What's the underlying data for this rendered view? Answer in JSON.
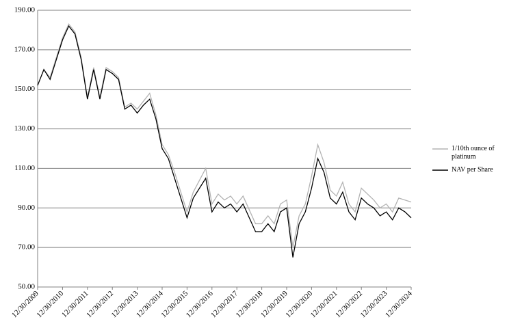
{
  "chart_data": {
    "type": "line",
    "categories": [
      "12/30/2009",
      null,
      null,
      null,
      "12/30/2010",
      null,
      null,
      null,
      "12/30/2011",
      null,
      null,
      null,
      "12/30/2012",
      null,
      null,
      null,
      "12/30/2013",
      null,
      null,
      null,
      "12/30/2014",
      null,
      null,
      null,
      "12/30/2015",
      null,
      null,
      null,
      "12/30/2016",
      null,
      null,
      null,
      "12/30/2017",
      null,
      null,
      null,
      "12/30/2018",
      null,
      null,
      null,
      "12/30/2019",
      null,
      null,
      null,
      "12/30/2020",
      null,
      null,
      null,
      "12/30/2021",
      null,
      null,
      null,
      "12/30/2022",
      null,
      null,
      null,
      "12/30/2023",
      null,
      null,
      null,
      "12/30/2024"
    ],
    "series": [
      {
        "name": "1/10th ounce of platinum",
        "color": "#b3b3b3",
        "values": [
          152,
          160,
          156,
          166,
          176,
          183,
          179,
          166,
          146,
          161,
          146,
          161,
          159,
          156,
          141,
          143,
          140,
          144,
          148,
          137,
          122,
          117,
          108,
          98,
          88,
          98,
          104,
          110,
          92,
          97,
          94,
          96,
          92,
          96,
          89,
          82,
          82,
          86,
          82,
          92,
          94,
          70,
          86,
          92,
          106,
          122,
          113,
          99,
          96,
          103,
          92,
          88,
          100,
          97,
          94,
          90,
          92,
          88,
          95,
          94,
          93
        ]
      },
      {
        "name": "NAV per Share",
        "color": "#000000",
        "values": [
          152,
          160,
          155,
          165,
          175,
          182,
          178,
          165,
          145,
          160,
          145,
          160,
          158,
          155,
          140,
          142,
          138,
          142,
          145,
          135,
          120,
          115,
          105,
          95,
          85,
          95,
          100,
          105,
          88,
          93,
          90,
          92,
          88,
          92,
          85,
          78,
          78,
          82,
          78,
          88,
          90,
          65,
          82,
          88,
          100,
          115,
          108,
          95,
          92,
          98,
          88,
          84,
          95,
          92,
          90,
          86,
          88,
          84,
          90,
          88,
          85
        ]
      }
    ],
    "ylim": [
      50,
      190
    ],
    "yticks": [
      {
        "value": 50,
        "label": "50.00"
      },
      {
        "value": 70,
        "label": "70.00"
      },
      {
        "value": 90,
        "label": "90.00"
      },
      {
        "value": 110,
        "label": "110.00"
      },
      {
        "value": 130,
        "label": "130.00"
      },
      {
        "value": 150,
        "label": "150.00"
      },
      {
        "value": 170,
        "label": "170.00"
      },
      {
        "value": 190,
        "label": "190.00"
      }
    ],
    "grid": true
  }
}
